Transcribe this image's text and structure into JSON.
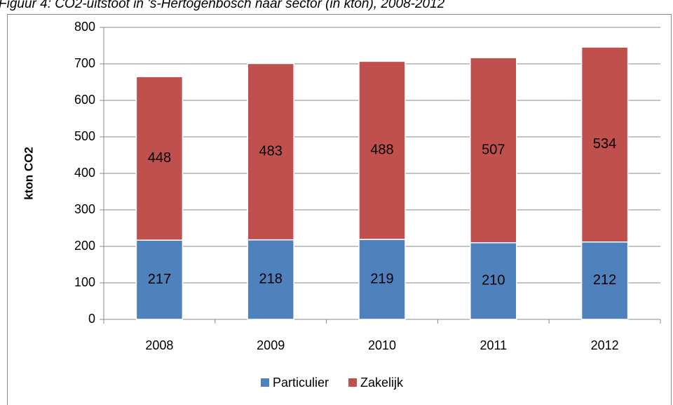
{
  "chart_data": {
    "type": "stacked_bar",
    "title": "Figuur 4: CO2-uitstoot in 's-Hertogenbosch naar sector (in kton), 2008-2012",
    "y_label": "kton CO2",
    "categories": [
      "2008",
      "2009",
      "2010",
      "2011",
      "2012"
    ],
    "series": [
      {
        "name": "Particulier",
        "color": "#4f81bd",
        "values": [
          217,
          218,
          219,
          210,
          212
        ]
      },
      {
        "name": "Zakelijk",
        "color": "#c0504d",
        "values": [
          448,
          483,
          488,
          507,
          534
        ]
      }
    ],
    "ylim": [
      0,
      800
    ],
    "yticks": [
      0,
      100,
      200,
      300,
      400,
      500,
      600,
      700,
      800
    ],
    "grid": true,
    "legend": "bottom"
  }
}
